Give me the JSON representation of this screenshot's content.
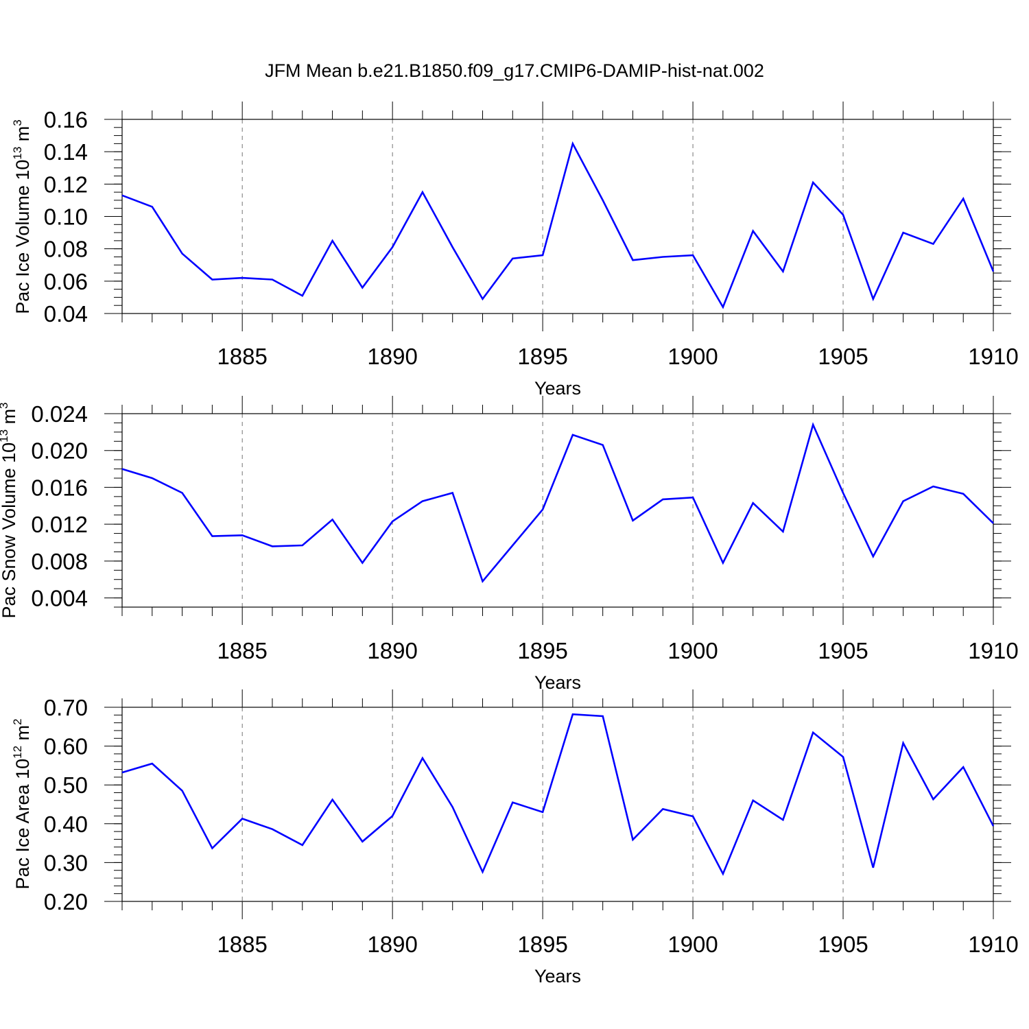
{
  "title": "JFM Mean b.e21.B1850.f09_g17.CMIP6-DAMIP-hist-nat.002",
  "colors": {
    "line": "#0000ff",
    "axis": "#000000",
    "background": "#ffffff"
  },
  "chart_data": [
    {
      "type": "line",
      "ylabel": "Pac Ice Volume 10",
      "ylabel_exp": "13",
      "ylabel_unit": " m",
      "ylabel_unit_exp": "3",
      "xlabel": "Years",
      "xlim": [
        1881,
        1910
      ],
      "ylim": [
        0.04,
        0.16
      ],
      "yticks": [
        0.04,
        0.06,
        0.08,
        0.1,
        0.12,
        0.14,
        0.16
      ],
      "ytick_labels": [
        "0.04",
        "0.06",
        "0.08",
        "0.10",
        "0.12",
        "0.14",
        "0.16"
      ],
      "yminor_step": 0.005,
      "xticks": [
        1885,
        1890,
        1895,
        1900,
        1905,
        1910
      ],
      "xtick_labels": [
        "1885",
        "1890",
        "1895",
        "1900",
        "1905",
        "1910"
      ],
      "grid": "x-major-dashed",
      "x": [
        1881,
        1882,
        1883,
        1884,
        1885,
        1886,
        1887,
        1888,
        1889,
        1890,
        1891,
        1892,
        1893,
        1894,
        1895,
        1896,
        1897,
        1898,
        1899,
        1900,
        1901,
        1902,
        1903,
        1904,
        1905,
        1906,
        1907,
        1908,
        1909,
        1910
      ],
      "values": [
        0.113,
        0.106,
        0.077,
        0.061,
        0.062,
        0.061,
        0.051,
        0.085,
        0.056,
        0.081,
        0.115,
        0.081,
        0.049,
        0.074,
        0.076,
        0.145,
        0.11,
        0.073,
        0.075,
        0.076,
        0.044,
        0.091,
        0.066,
        0.121,
        0.101,
        0.049,
        0.09,
        0.083,
        0.111,
        0.066
      ]
    },
    {
      "type": "line",
      "ylabel": "Pac Snow Volume 10",
      "ylabel_exp": "13",
      "ylabel_unit": " m",
      "ylabel_unit_exp": "3",
      "xlabel": "Years",
      "xlim": [
        1881,
        1910
      ],
      "ylim": [
        0.003,
        0.024
      ],
      "yticks": [
        0.004,
        0.008,
        0.012,
        0.016,
        0.02,
        0.024
      ],
      "ytick_labels": [
        "0.004",
        "0.008",
        "0.012",
        "0.016",
        "0.020",
        "0.024"
      ],
      "yminor_step": 0.001,
      "xticks": [
        1885,
        1890,
        1895,
        1900,
        1905,
        1910
      ],
      "xtick_labels": [
        "1885",
        "1890",
        "1895",
        "1900",
        "1905",
        "1910"
      ],
      "grid": "x-major-dashed",
      "x": [
        1881,
        1882,
        1883,
        1884,
        1885,
        1886,
        1887,
        1888,
        1889,
        1890,
        1891,
        1892,
        1893,
        1894,
        1895,
        1896,
        1897,
        1898,
        1899,
        1900,
        1901,
        1902,
        1903,
        1904,
        1905,
        1906,
        1907,
        1908,
        1909,
        1910
      ],
      "values": [
        0.018,
        0.017,
        0.0154,
        0.0107,
        0.0108,
        0.0096,
        0.0097,
        0.0125,
        0.0078,
        0.0123,
        0.0145,
        0.0154,
        0.0058,
        0.0097,
        0.0136,
        0.0217,
        0.0206,
        0.0124,
        0.0147,
        0.0149,
        0.0078,
        0.0143,
        0.0112,
        0.0228,
        0.0154,
        0.0085,
        0.0145,
        0.0161,
        0.0153,
        0.0121
      ]
    },
    {
      "type": "line",
      "ylabel": "Pac Ice Area 10",
      "ylabel_exp": "12",
      "ylabel_unit": " m",
      "ylabel_unit_exp": "2",
      "xlabel": "Years",
      "xlim": [
        1881,
        1910
      ],
      "ylim": [
        0.2,
        0.7
      ],
      "yticks": [
        0.2,
        0.3,
        0.4,
        0.5,
        0.6,
        0.7
      ],
      "ytick_labels": [
        "0.20",
        "0.30",
        "0.40",
        "0.50",
        "0.60",
        "0.70"
      ],
      "yminor_step": 0.02,
      "xticks": [
        1885,
        1890,
        1895,
        1900,
        1905,
        1910
      ],
      "xtick_labels": [
        "1885",
        "1890",
        "1895",
        "1900",
        "1905",
        "1910"
      ],
      "grid": "x-major-dashed",
      "x": [
        1881,
        1882,
        1883,
        1884,
        1885,
        1886,
        1887,
        1888,
        1889,
        1890,
        1891,
        1892,
        1893,
        1894,
        1895,
        1896,
        1897,
        1898,
        1899,
        1900,
        1901,
        1902,
        1903,
        1904,
        1905,
        1906,
        1907,
        1908,
        1909,
        1910
      ],
      "values": [
        0.532,
        0.555,
        0.485,
        0.337,
        0.413,
        0.386,
        0.345,
        0.462,
        0.354,
        0.42,
        0.569,
        0.443,
        0.276,
        0.455,
        0.43,
        0.682,
        0.677,
        0.359,
        0.438,
        0.419,
        0.271,
        0.46,
        0.41,
        0.635,
        0.572,
        0.287,
        0.608,
        0.463,
        0.546,
        0.394
      ]
    }
  ]
}
